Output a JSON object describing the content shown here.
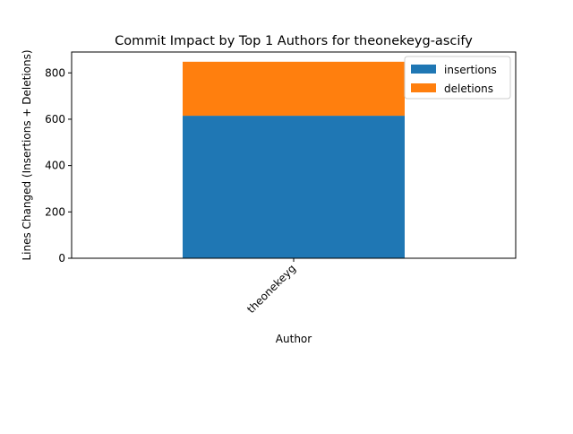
{
  "chart_data": {
    "type": "bar",
    "stacked": true,
    "title": "Commit Impact by Top 1 Authors for theonekeyg-ascify",
    "xlabel": "Author",
    "ylabel": "Lines Changed (Insertions + Deletions)",
    "categories": [
      "theonekeyg"
    ],
    "series": [
      {
        "name": "insertions",
        "color": "#1f77b4",
        "values": [
          615
        ]
      },
      {
        "name": "deletions",
        "color": "#ff7f0e",
        "values": [
          233
        ]
      }
    ],
    "ylim": [
      0,
      890
    ],
    "yticks": [
      0,
      200,
      400,
      600,
      800
    ],
    "grid": false,
    "legend_position": "top-right"
  }
}
